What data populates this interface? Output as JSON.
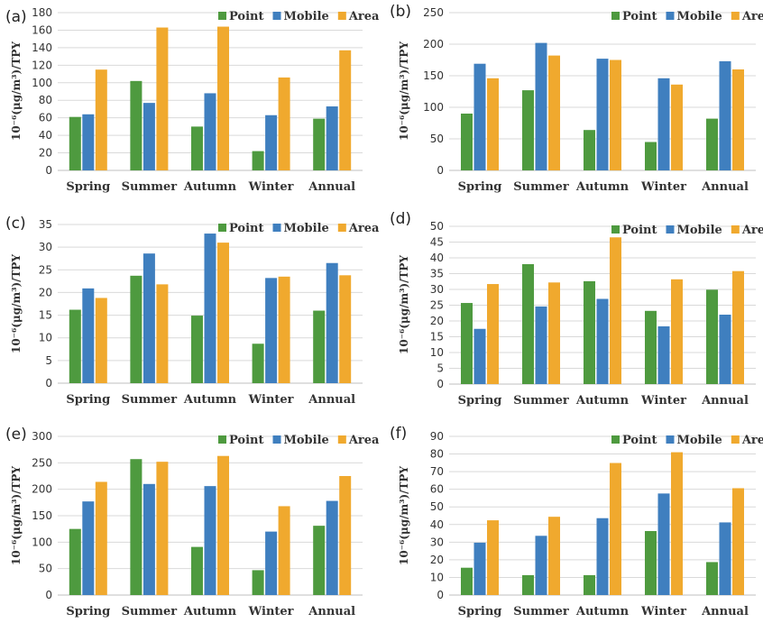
{
  "colors": {
    "Point": "#4e9a3f",
    "Mobile": "#3f7fbf",
    "Area": "#f0a92e"
  },
  "chart_data": [
    {
      "type": "bar",
      "panel": "(a)",
      "categories": [
        "Spring",
        "Summer",
        "Autumn",
        "Winter",
        "Annual"
      ],
      "series": [
        {
          "name": "Point",
          "values": [
            61,
            102,
            50,
            22,
            59
          ]
        },
        {
          "name": "Mobile",
          "values": [
            64,
            77,
            88,
            63,
            73
          ]
        },
        {
          "name": "Area",
          "values": [
            115,
            163,
            164,
            106,
            137
          ]
        }
      ],
      "ylim": [
        0,
        180
      ],
      "yticks": [
        0,
        20,
        40,
        60,
        80,
        100,
        120,
        140,
        160,
        180
      ],
      "ylabel": "10⁻⁶(μg/m³)/TPY",
      "legend": "top-right",
      "grid": true
    },
    {
      "type": "bar",
      "panel": "(b)",
      "categories": [
        "Spring",
        "Summer",
        "Autumn",
        "Winter",
        "Annual"
      ],
      "series": [
        {
          "name": "Point",
          "values": [
            90,
            127,
            64,
            45,
            82
          ]
        },
        {
          "name": "Mobile",
          "values": [
            169,
            202,
            177,
            146,
            173
          ]
        },
        {
          "name": "Area",
          "values": [
            146,
            182,
            175,
            136,
            160
          ]
        }
      ],
      "ylim": [
        0,
        250
      ],
      "yticks": [
        0,
        50,
        100,
        150,
        200,
        250
      ],
      "ylabel": "10⁻⁶(μg/m³)/TPY",
      "legend": "top-right",
      "grid": true
    },
    {
      "type": "bar",
      "panel": "(c)",
      "categories": [
        "Spring",
        "Summer",
        "Autumn",
        "Winter",
        "Annual"
      ],
      "series": [
        {
          "name": "Point",
          "values": [
            16.2,
            23.7,
            14.9,
            8.7,
            16.0
          ]
        },
        {
          "name": "Mobile",
          "values": [
            20.9,
            28.6,
            33.0,
            23.2,
            26.5
          ]
        },
        {
          "name": "Area",
          "values": [
            18.8,
            21.8,
            31.0,
            23.5,
            23.8
          ]
        }
      ],
      "ylim": [
        0,
        35
      ],
      "yticks": [
        0,
        5,
        10,
        15,
        20,
        25,
        30,
        35
      ],
      "ylabel": "10⁻⁶(μg/m³)/TPY",
      "legend": "top-right",
      "grid": true
    },
    {
      "type": "bar",
      "panel": "(d)",
      "categories": [
        "Spring",
        "Summer",
        "Autumn",
        "Winter",
        "Annual"
      ],
      "series": [
        {
          "name": "Point",
          "values": [
            25.7,
            38.0,
            32.6,
            23.2,
            29.9
          ]
        },
        {
          "name": "Mobile",
          "values": [
            17.5,
            24.6,
            27.0,
            18.3,
            22.0
          ]
        },
        {
          "name": "Area",
          "values": [
            31.7,
            32.2,
            46.5,
            33.2,
            35.8
          ]
        }
      ],
      "ylim": [
        0,
        50
      ],
      "yticks": [
        0,
        5,
        10,
        15,
        20,
        25,
        30,
        35,
        40,
        45,
        50
      ],
      "ylabel": "10⁻⁶(μg/m³)/TPY",
      "legend": "top-right",
      "grid": true
    },
    {
      "type": "bar",
      "panel": "(e)",
      "categories": [
        "Spring",
        "Summer",
        "Autumn",
        "Winter",
        "Annual"
      ],
      "series": [
        {
          "name": "Point",
          "values": [
            125,
            257,
            91,
            47,
            131
          ]
        },
        {
          "name": "Mobile",
          "values": [
            177,
            210,
            206,
            120,
            178
          ]
        },
        {
          "name": "Area",
          "values": [
            214,
            252,
            263,
            168,
            225
          ]
        }
      ],
      "ylim": [
        0,
        300
      ],
      "yticks": [
        0,
        50,
        100,
        150,
        200,
        250,
        300
      ],
      "ylabel": "10⁻⁶(μg/m³)/TPY",
      "legend": "top-right",
      "grid": true
    },
    {
      "type": "bar",
      "panel": "(f)",
      "categories": [
        "Spring",
        "Summer",
        "Autumn",
        "Winter",
        "Annual"
      ],
      "series": [
        {
          "name": "Point",
          "values": [
            15.5,
            11.3,
            11.3,
            36.3,
            18.7
          ]
        },
        {
          "name": "Mobile",
          "values": [
            29.7,
            33.6,
            43.6,
            57.6,
            41.2
          ]
        },
        {
          "name": "Area",
          "values": [
            42.4,
            44.4,
            74.9,
            81.0,
            60.6
          ]
        }
      ],
      "ylim": [
        0,
        90
      ],
      "yticks": [
        0,
        10,
        20,
        30,
        40,
        50,
        60,
        70,
        80,
        90
      ],
      "ylabel": "10⁻⁶(μg/m³)/TPY",
      "legend": "top-right",
      "grid": true
    }
  ]
}
